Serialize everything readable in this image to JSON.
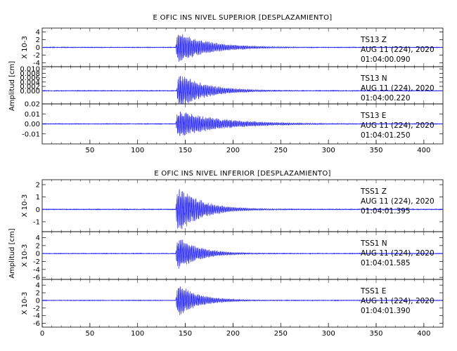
{
  "chart_data": [
    {
      "type": "line",
      "title": "E OFIC INS NIVEL SUPERIOR [DESPLAZAMIENTO]",
      "ylabel": "Amplitud [cm]",
      "xlim": [
        0,
        420
      ],
      "x_ticks": [
        50,
        100,
        150,
        200,
        250,
        300,
        350,
        400
      ],
      "grid": false,
      "traces": [
        {
          "station": "TS13",
          "component": "Z",
          "date": "AUG 11 (224), 2020",
          "time": "01:04:00.090",
          "scale_label": "X 10-3",
          "yticks": [
            4,
            2,
            0,
            -2,
            -4
          ],
          "ylim": [
            -5,
            5
          ],
          "event": {
            "onset": 140,
            "peak": 4.5,
            "decay": 32
          },
          "noise": 0.05
        },
        {
          "station": "TS13",
          "component": "N",
          "date": "AUG 11 (224), 2020",
          "time": "01:04:00.220",
          "scale_label": "",
          "yticks": [
            0.01,
            0.008,
            0.006,
            0.004,
            0.002,
            0.0
          ],
          "ylim": [
            -0.006,
            0.011
          ],
          "event": {
            "onset": 141,
            "peak": 0.009,
            "decay": 28
          },
          "noise": 0.0001
        },
        {
          "station": "TS13",
          "component": "E",
          "date": "AUG 11 (224), 2020",
          "time": "01:04:01.250",
          "scale_label": "",
          "yticks": [
            0.02,
            0.01,
            0.0,
            -0.01
          ],
          "ylim": [
            -0.02,
            0.02
          ],
          "event": {
            "onset": 140,
            "peak": 0.015,
            "decay": 45
          },
          "noise": 0.0002
        }
      ]
    },
    {
      "type": "line",
      "title": "E OFIC INS NIVEL INFERIOR [DESPLAZAMIENTO]",
      "ylabel": "Amplitud [cm]",
      "xlim": [
        0,
        420
      ],
      "x_ticks": [
        0,
        50,
        100,
        150,
        200,
        250,
        300,
        350,
        400
      ],
      "grid": false,
      "traces": [
        {
          "station": "TSS1",
          "component": "Z",
          "date": "AUG 11 (224), 2020",
          "time": "01:04:01.395",
          "scale_label": "X 10-3",
          "yticks": [
            2,
            1,
            0,
            -1
          ],
          "ylim": [
            -1.8,
            2.4
          ],
          "event": {
            "onset": 140,
            "peak": 2.2,
            "decay": 25
          },
          "noise": 0.02
        },
        {
          "station": "TSS1",
          "component": "N",
          "date": "AUG 11 (224), 2020",
          "time": "01:04:01.585",
          "scale_label": "X 10-3",
          "yticks": [
            4,
            2,
            0,
            -2,
            -4,
            -6
          ],
          "ylim": [
            -6.5,
            5.5
          ],
          "event": {
            "onset": 140,
            "peak": 5.0,
            "decay": 22
          },
          "noise": 0.05
        },
        {
          "station": "TSS1",
          "component": "E",
          "date": "AUG 11 (224), 2020",
          "time": "01:04:01.390",
          "scale_label": "X 10-3",
          "yticks": [
            4,
            2,
            0,
            -2,
            -4,
            -6
          ],
          "ylim": [
            -7,
            5.5
          ],
          "event": {
            "onset": 140,
            "peak": 5.0,
            "decay": 22
          },
          "noise": 0.05
        }
      ]
    }
  ],
  "colors": {
    "trace": "#1a1aff",
    "axes": "#000000",
    "background": "#ffffff"
  }
}
